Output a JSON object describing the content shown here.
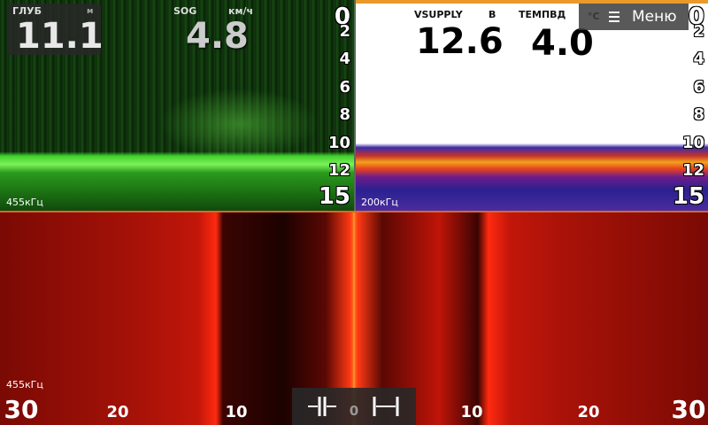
{
  "top_left": {
    "depth": {
      "label": "ГЛУБ",
      "unit": "м",
      "value": "11.1"
    },
    "sog": {
      "label": "SOG",
      "unit": "км/ч",
      "value": "4.8"
    },
    "depth_scale": [
      "0",
      "2",
      "4",
      "6",
      "8",
      "10",
      "12",
      "15"
    ],
    "frequency": "455кГц"
  },
  "top_right": {
    "vsupply": {
      "label": "VSUPPLY",
      "unit": "В",
      "value": "12.6"
    },
    "water_temp": {
      "label": "ТЕМПВД",
      "unit": "°C",
      "value": "4.0"
    },
    "depth_scale": [
      "0",
      "2",
      "4",
      "6",
      "8",
      "10",
      "12",
      "15"
    ],
    "frequency": "200кГц"
  },
  "menu": {
    "label": "Меню"
  },
  "side_scan": {
    "frequency": "455кГц",
    "range_scale": [
      "30",
      "20",
      "10",
      "0",
      "10",
      "20",
      "30"
    ]
  }
}
